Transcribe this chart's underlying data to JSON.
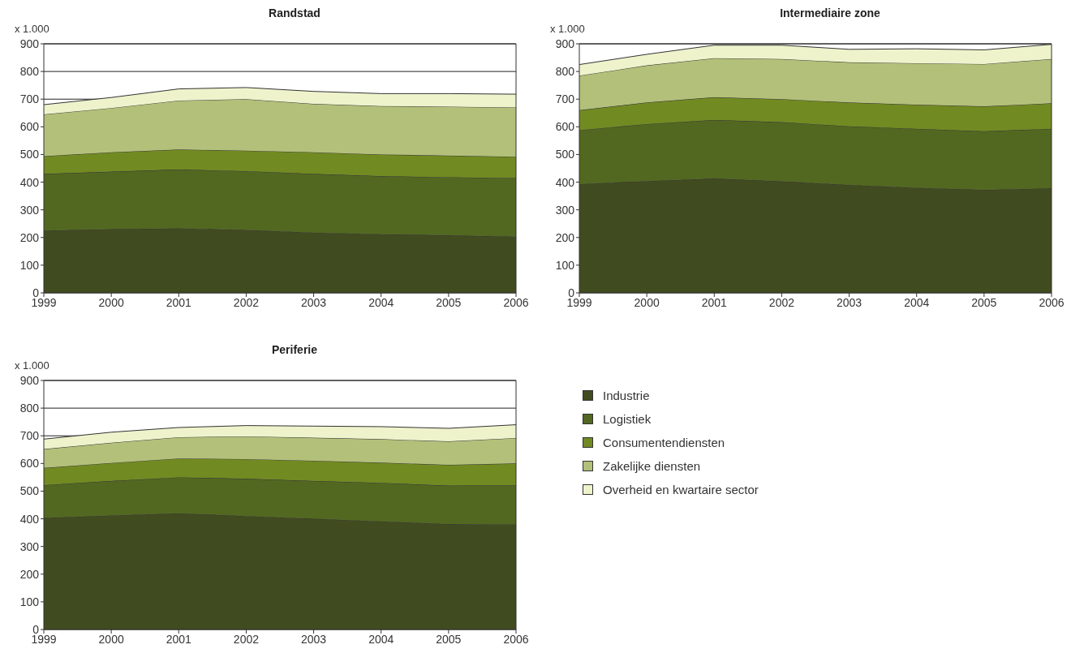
{
  "chart_data": [
    {
      "type": "area",
      "title": "Randstad",
      "ylabel": "x 1.000",
      "stacked": true,
      "categories": [
        "1999",
        "2000",
        "2001",
        "2002",
        "2003",
        "2004",
        "2005",
        "2006"
      ],
      "ylim": [
        0,
        900
      ],
      "yticks": [
        0,
        100,
        200,
        300,
        400,
        500,
        600,
        700,
        800,
        900
      ],
      "grid": "y",
      "series": [
        {
          "color": "#414b20",
          "values": [
            225,
            230,
            233,
            227,
            218,
            212,
            208,
            203
          ]
        },
        {
          "color": "#526820",
          "values": [
            205,
            208,
            213,
            213,
            212,
            210,
            210,
            212
          ]
        },
        {
          "color": "#728a22",
          "values": [
            64,
            70,
            72,
            74,
            78,
            78,
            78,
            77
          ]
        },
        {
          "color": "#b3c07a",
          "values": [
            151,
            160,
            177,
            186,
            175,
            175,
            177,
            178
          ]
        },
        {
          "color": "#eef3cc",
          "values": [
            35,
            38,
            42,
            42,
            45,
            45,
            47,
            48
          ]
        }
      ]
    },
    {
      "type": "area",
      "title": "Intermediaire zone",
      "ylabel": "x 1.000",
      "stacked": true,
      "categories": [
        "1999",
        "2000",
        "2001",
        "2002",
        "2003",
        "2004",
        "2005",
        "2006"
      ],
      "ylim": [
        0,
        900
      ],
      "yticks": [
        0,
        100,
        200,
        300,
        400,
        500,
        600,
        700,
        800,
        900
      ],
      "grid": "y",
      "series": [
        {
          "color": "#414b20",
          "values": [
            393,
            404,
            413,
            403,
            390,
            380,
            372,
            378
          ]
        },
        {
          "color": "#526820",
          "values": [
            195,
            206,
            212,
            214,
            212,
            213,
            212,
            215
          ]
        },
        {
          "color": "#728a22",
          "values": [
            72,
            78,
            82,
            83,
            86,
            87,
            90,
            92
          ]
        },
        {
          "color": "#b3c07a",
          "values": [
            125,
            134,
            141,
            145,
            145,
            150,
            153,
            160
          ]
        },
        {
          "color": "#eef3cc",
          "values": [
            40,
            40,
            47,
            50,
            47,
            52,
            51,
            53
          ]
        }
      ]
    },
    {
      "type": "area",
      "title": "Periferie",
      "ylabel": "x 1.000",
      "stacked": true,
      "categories": [
        "1999",
        "2000",
        "2001",
        "2002",
        "2003",
        "2004",
        "2005",
        "2006"
      ],
      "ylim": [
        0,
        900
      ],
      "yticks": [
        0,
        100,
        200,
        300,
        400,
        500,
        600,
        700,
        800,
        900
      ],
      "grid": "y",
      "legend": "right",
      "series": [
        {
          "name": "Industrie",
          "color": "#414b20",
          "values": [
            403,
            412,
            420,
            410,
            400,
            391,
            381,
            380
          ]
        },
        {
          "name": "Logistiek",
          "color": "#526820",
          "values": [
            119,
            125,
            130,
            135,
            137,
            139,
            139,
            141
          ]
        },
        {
          "name": "Consumentendiensten",
          "color": "#728a22",
          "values": [
            62,
            65,
            68,
            71,
            73,
            73,
            75,
            79
          ]
        },
        {
          "name": "Zakelijke diensten",
          "color": "#b3c07a",
          "values": [
            68,
            73,
            77,
            82,
            83,
            85,
            85,
            92
          ]
        },
        {
          "name": "Overheid en kwartaire sector",
          "color": "#eef3cc",
          "values": [
            36,
            38,
            35,
            39,
            42,
            45,
            47,
            48
          ]
        }
      ]
    }
  ]
}
